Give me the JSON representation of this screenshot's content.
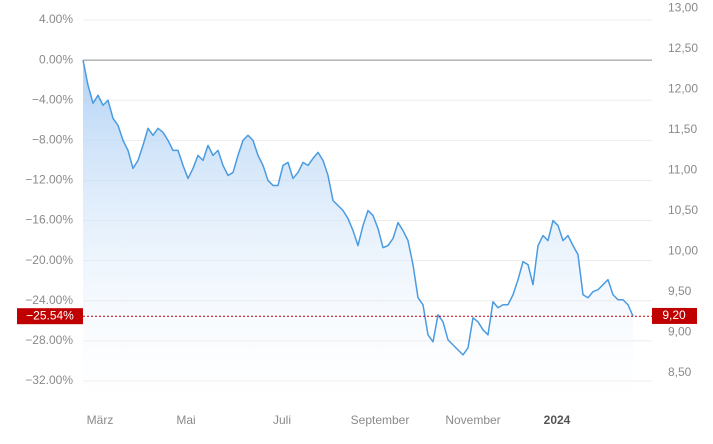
{
  "chart_data": {
    "type": "line",
    "series": [
      {
        "color": "#4a9be0",
        "values": [
          0,
          -2.5,
          -4.3,
          -3.5,
          -4.5,
          -4.0,
          -5.8,
          -6.5,
          -8.0,
          -9.0,
          -10.8,
          -10.0,
          -8.5,
          -6.8,
          -7.5,
          -6.8,
          -7.2,
          -8.0,
          -9.0,
          -9.0,
          -10.5,
          -11.8,
          -10.8,
          -9.5,
          -10.0,
          -8.5,
          -9.5,
          -9.0,
          -10.5,
          -11.5,
          -11.2,
          -9.5,
          -8.0,
          -7.5,
          -8.0,
          -9.5,
          -10.5,
          -12.0,
          -12.5,
          -12.5,
          -10.5,
          -10.2,
          -11.8,
          -11.2,
          -10.2,
          -10.5,
          -9.8,
          -9.2,
          -10.0,
          -11.5,
          -14.0,
          -14.5,
          -15.0,
          -15.8,
          -17.0,
          -18.5,
          -16.5,
          -15.0,
          -15.5,
          -16.8,
          -18.7,
          -18.5,
          -17.8,
          -16.2,
          -17.0,
          -18.0,
          -20.4,
          -23.7,
          -24.4,
          -27.4,
          -28.1,
          -25.4,
          -26.1,
          -27.9,
          -28.4,
          -28.9,
          -29.4,
          -28.7,
          -25.7,
          -26.1,
          -26.9,
          -27.4,
          -24.1,
          -24.7,
          -24.4,
          -24.4,
          -23.4,
          -21.9,
          -20.1,
          -20.4,
          -22.4,
          -18.5,
          -17.5,
          -18.0,
          -16.0,
          -16.5,
          -18.0,
          -17.5,
          -18.5,
          -19.4,
          -23.4,
          -23.7,
          -23.1,
          -22.9,
          -22.4,
          -21.9,
          -23.4,
          -23.9,
          -23.9,
          -24.4,
          -25.54
        ]
      }
    ],
    "xlim": [
      0,
      113.8
    ],
    "xticks": [
      {
        "value": 3.4,
        "label": "März"
      },
      {
        "value": 20.6,
        "label": "Mai"
      },
      {
        "value": 39.8,
        "label": "Juli"
      },
      {
        "value": 59.4,
        "label": "September"
      },
      {
        "value": 78,
        "label": "November"
      },
      {
        "value": 94.8,
        "label": "2024"
      }
    ],
    "ylim": [
      -34,
      6
    ],
    "yticks": [
      {
        "value": 4,
        "label": "4.00%"
      },
      {
        "value": 0,
        "label": "0.00%"
      },
      {
        "value": -4,
        "label": "−4.00%"
      },
      {
        "value": -8,
        "label": "−8.00%"
      },
      {
        "value": -12,
        "label": "−12.00%"
      },
      {
        "value": -16,
        "label": "−16.00%"
      },
      {
        "value": -20,
        "label": "−20.00%"
      },
      {
        "value": -24,
        "label": "−24.00%"
      },
      {
        "value": -28,
        "label": "−28.00%"
      },
      {
        "value": -32,
        "label": "−32.00%"
      }
    ],
    "y2lim": [
      8.15,
      13.1
    ],
    "y2ticks": [
      {
        "value": 13,
        "label": "13,00"
      },
      {
        "value": 12.5,
        "label": "12,50"
      },
      {
        "value": 12,
        "label": "12,00"
      },
      {
        "value": 11.5,
        "label": "11,50"
      },
      {
        "value": 11,
        "label": "11,00"
      },
      {
        "value": 10.5,
        "label": "10,50"
      },
      {
        "value": 10,
        "label": "10,00"
      },
      {
        "value": 9.5,
        "label": "9,50"
      },
      {
        "value": 9,
        "label": "9,00"
      },
      {
        "value": 8.5,
        "label": "8,50"
      }
    ],
    "grid": true,
    "marker": {
      "value": -25.54,
      "label": "−25.54%",
      "y2_value": 9.2,
      "y2_label": "9,20",
      "color": "#c00000"
    }
  }
}
